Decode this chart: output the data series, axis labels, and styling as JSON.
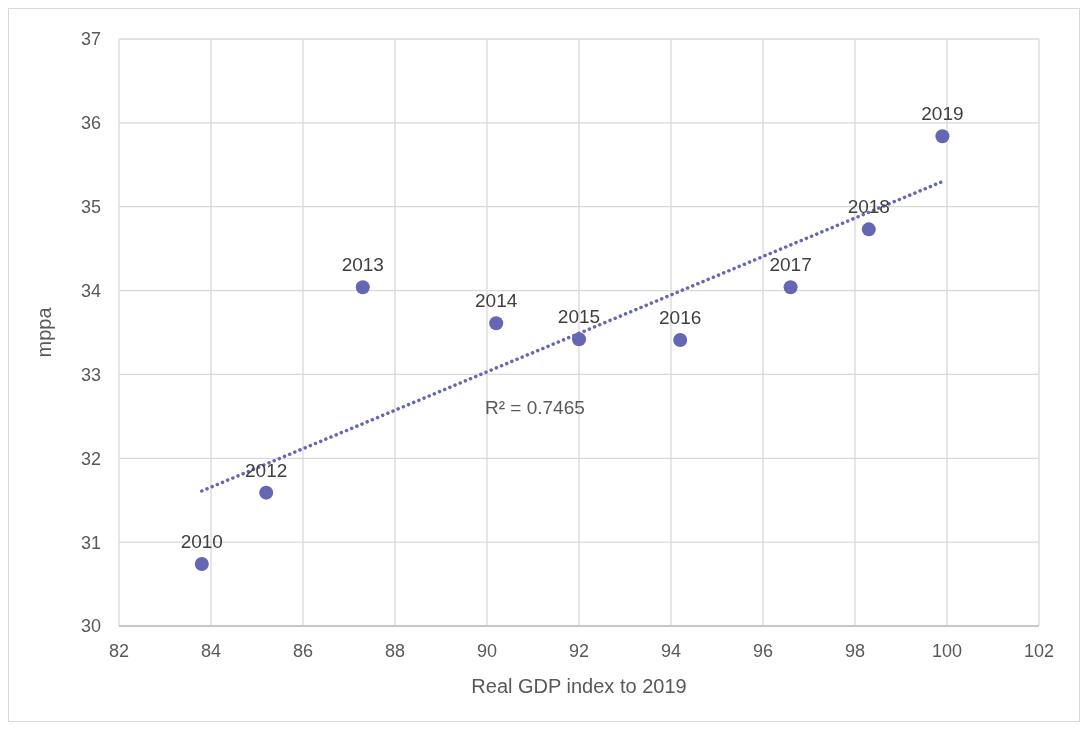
{
  "chart_data": {
    "type": "scatter",
    "xlabel": "Real GDP index to 2019",
    "ylabel": "mppa",
    "xlim": [
      82,
      102
    ],
    "xticks": [
      82,
      84,
      86,
      88,
      90,
      92,
      94,
      96,
      98,
      100,
      102
    ],
    "ylim": [
      30,
      37
    ],
    "yticks": [
      30,
      31,
      32,
      33,
      34,
      35,
      36,
      37
    ],
    "grid": true,
    "legend": false,
    "marker": "circle",
    "series": [
      {
        "color": "#6567b5",
        "x": [
          83.8,
          85.2,
          87.3,
          90.2,
          92.0,
          94.2,
          96.6,
          98.3,
          99.9
        ],
        "values": [
          30.74,
          31.59,
          34.04,
          33.61,
          33.42,
          33.41,
          34.04,
          34.73,
          35.84
        ]
      },
      {
        "type": "line",
        "color": "#6567b5",
        "line_style": "dotted",
        "marker": "none",
        "x": [
          83.8,
          99.9
        ],
        "values": [
          31.61,
          35.3
        ]
      }
    ],
    "annotations": [
      {
        "text": "2010",
        "x": 83.8,
        "y": 30.74
      },
      {
        "text": "2012",
        "x": 85.2,
        "y": 31.59
      },
      {
        "text": "2013",
        "x": 87.3,
        "y": 34.04
      },
      {
        "text": "2014",
        "x": 90.2,
        "y": 33.61
      },
      {
        "text": "2015",
        "x": 92.0,
        "y": 33.42
      },
      {
        "text": "2016",
        "x": 94.2,
        "y": 33.41
      },
      {
        "text": "2017",
        "x": 96.6,
        "y": 34.04
      },
      {
        "text": "2018",
        "x": 98.3,
        "y": 34.73
      },
      {
        "text": "2019",
        "x": 99.9,
        "y": 35.84
      },
      "R² = 0.7465"
    ]
  }
}
